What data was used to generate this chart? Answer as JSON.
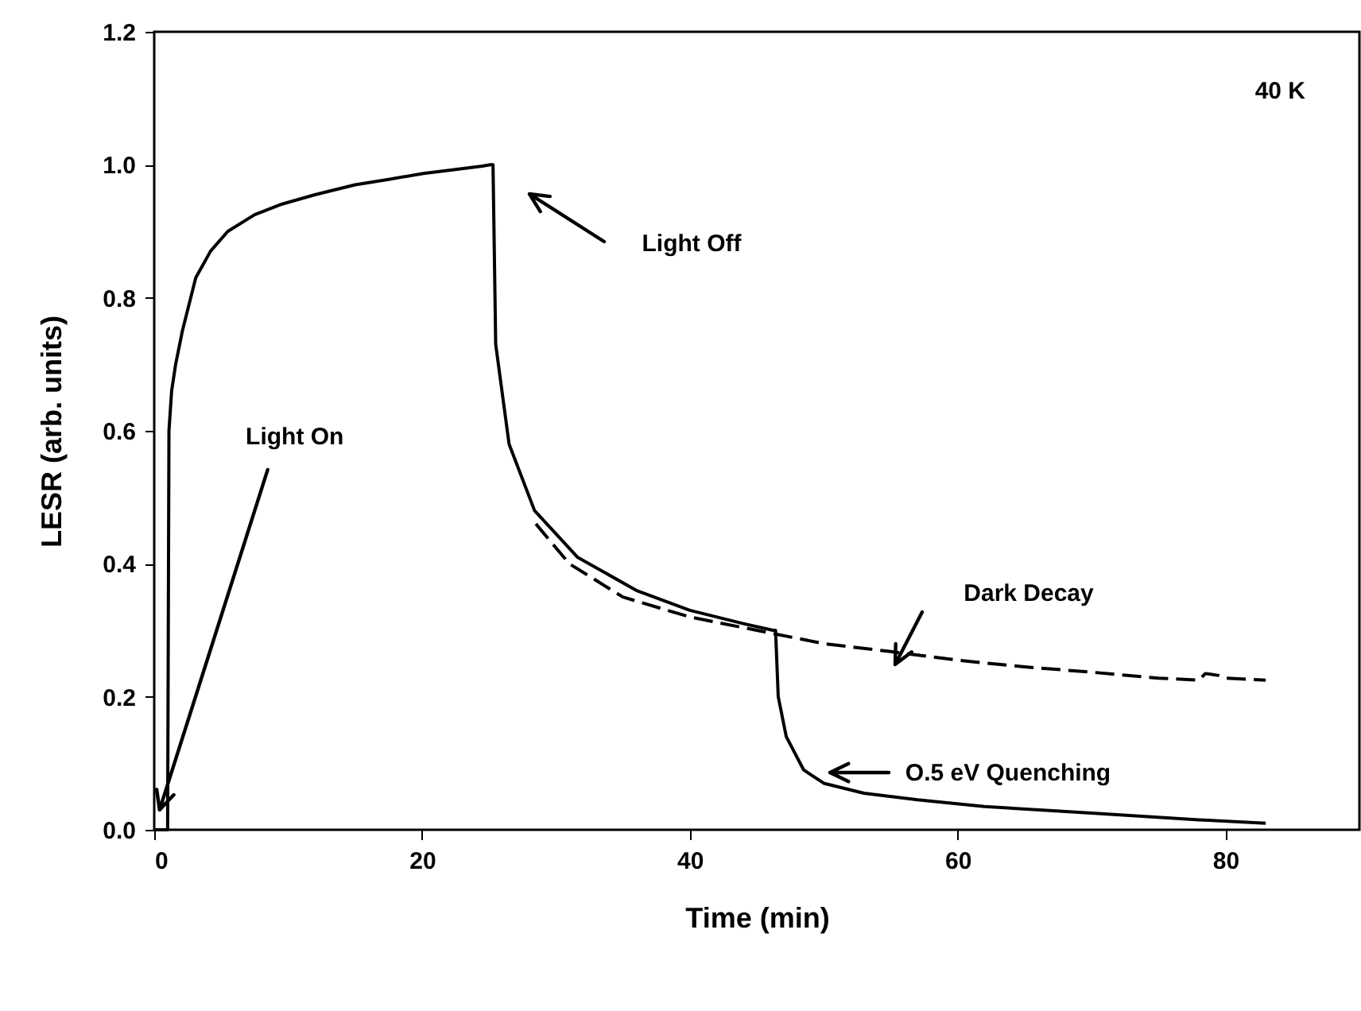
{
  "chart_data": {
    "type": "line",
    "xlabel": "Time (min)",
    "ylabel": "LESR (arb. units)",
    "xlim": [
      0,
      90
    ],
    "xticks": [
      0,
      20,
      40,
      60,
      80
    ],
    "ylim": [
      0,
      1.2
    ],
    "yticks": [
      {
        "value": 0,
        "label": "0.0"
      },
      0.2,
      0.4,
      0.6,
      0.8,
      {
        "value": 1,
        "label": "1.0"
      },
      1.2
    ],
    "grid": false,
    "series": [
      {
        "color": "#000000",
        "line_style": "solid",
        "x": [
          0,
          0.6,
          1.0,
          1.1,
          1.3,
          1.6,
          2.1,
          3.1,
          4.2,
          5.5,
          7.5,
          9.4,
          12,
          15,
          17.5,
          20.1,
          22.5,
          24.5,
          25.1,
          25.3,
          25.5,
          26.5,
          28.4,
          31.6,
          36,
          40,
          44,
          46.2,
          46.4,
          46.6,
          47.2,
          48.5,
          50,
          53,
          57,
          62,
          70,
          78,
          83
        ],
        "values": [
          0,
          0,
          0,
          0.6,
          0.66,
          0.7,
          0.75,
          0.83,
          0.87,
          0.9,
          0.925,
          0.94,
          0.955,
          0.97,
          0.978,
          0.987,
          0.993,
          0.998,
          1.0,
          1.0,
          0.73,
          0.58,
          0.48,
          0.41,
          0.36,
          0.33,
          0.31,
          0.3,
          0.3,
          0.2,
          0.14,
          0.09,
          0.07,
          0.055,
          0.045,
          0.035,
          0.025,
          0.015,
          0.01
        ]
      },
      {
        "color": "#000000",
        "line_style": "dashed",
        "x": [
          28.5,
          31,
          35,
          40,
          45,
          50,
          55,
          60,
          65,
          70,
          75,
          78,
          78.5,
          79.5,
          80,
          83
        ],
        "values": [
          0.46,
          0.4,
          0.35,
          0.32,
          0.3,
          0.28,
          0.268,
          0.255,
          0.245,
          0.237,
          0.228,
          0.225,
          0.235,
          0.232,
          0.228,
          0.225
        ]
      }
    ],
    "annotations": [
      "40 K",
      {
        "text": "Light On",
        "x": 0.4,
        "y": 0.03
      },
      "Light Off",
      "Dark Decay",
      "O.5 eV Quenching"
    ]
  }
}
